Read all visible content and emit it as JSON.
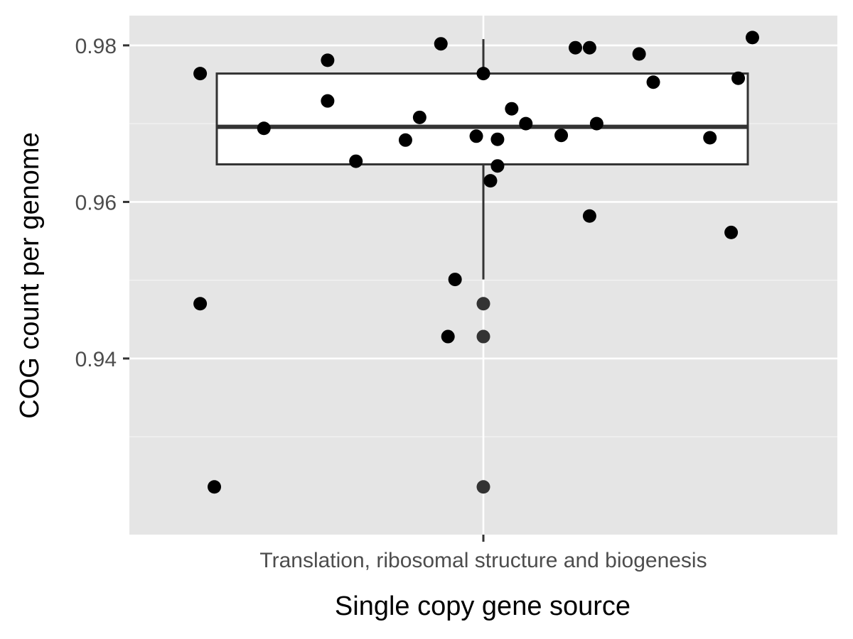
{
  "chart_data": {
    "type": "box",
    "xlabel": "Single copy gene source",
    "ylabel": "COG count per genome",
    "categories": [
      "Translation, ribosomal structure and biogenesis"
    ],
    "ylim": [
      0.9175,
      0.9838
    ],
    "yticks": [
      0.94,
      0.96,
      0.98
    ],
    "ytick_labels": [
      "0.94",
      "0.96",
      "0.98"
    ],
    "y_minor_gridlines": [
      0.93,
      0.95,
      0.97
    ],
    "grid": true,
    "panel_color": "#e5e5e5",
    "box": {
      "category": "Translation, ribosomal structure and biogenesis",
      "whisker_low": 0.9501,
      "q1": 0.9648,
      "median": 0.9696,
      "q3": 0.9764,
      "whisker_high": 0.9808,
      "outliers": [
        0.947,
        0.9428,
        0.9236
      ]
    },
    "jitter_points": [
      {
        "x": -0.4,
        "y": 0.9764
      },
      {
        "x": -0.31,
        "y": 0.9694
      },
      {
        "x": -0.22,
        "y": 0.9781
      },
      {
        "x": -0.22,
        "y": 0.9729
      },
      {
        "x": -0.18,
        "y": 0.9652
      },
      {
        "x": -0.11,
        "y": 0.9679
      },
      {
        "x": -0.09,
        "y": 0.9708
      },
      {
        "x": -0.06,
        "y": 0.9802
      },
      {
        "x": -0.01,
        "y": 0.9684
      },
      {
        "x": 0.0,
        "y": 0.9764
      },
      {
        "x": 0.01,
        "y": 0.9627
      },
      {
        "x": 0.02,
        "y": 0.968
      },
      {
        "x": 0.02,
        "y": 0.9646
      },
      {
        "x": 0.04,
        "y": 0.9719
      },
      {
        "x": 0.06,
        "y": 0.97
      },
      {
        "x": 0.11,
        "y": 0.9685
      },
      {
        "x": 0.13,
        "y": 0.9797
      },
      {
        "x": 0.15,
        "y": 0.9797
      },
      {
        "x": 0.16,
        "y": 0.97
      },
      {
        "x": 0.15,
        "y": 0.9582
      },
      {
        "x": 0.22,
        "y": 0.9789
      },
      {
        "x": 0.24,
        "y": 0.9753
      },
      {
        "x": 0.32,
        "y": 0.9682
      },
      {
        "x": 0.35,
        "y": 0.9561
      },
      {
        "x": 0.36,
        "y": 0.9758
      },
      {
        "x": 0.38,
        "y": 0.981
      },
      {
        "x": -0.04,
        "y": 0.9501
      },
      {
        "x": -0.05,
        "y": 0.9428
      },
      {
        "x": -0.4,
        "y": 0.947
      },
      {
        "x": -0.38,
        "y": 0.9236
      }
    ]
  }
}
